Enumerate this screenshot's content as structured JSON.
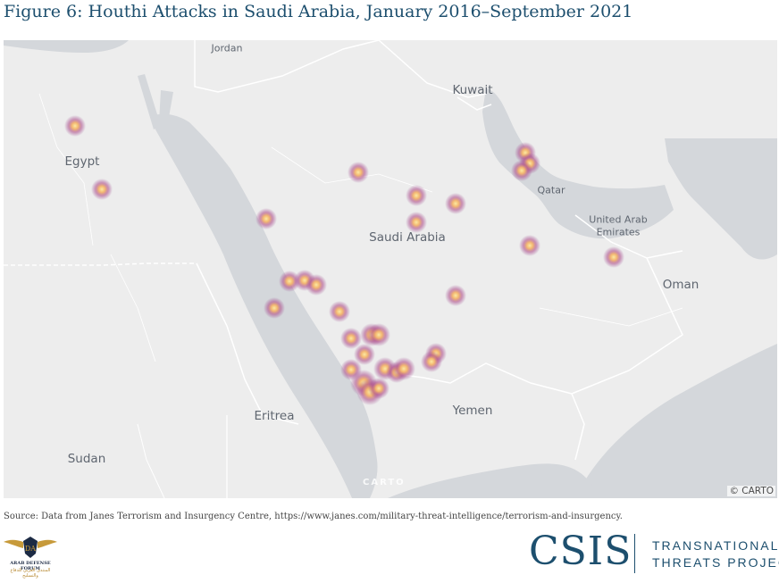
{
  "title": "Figure 6: Houthi Attacks in Saudi Arabia, January 2016–September 2021",
  "map": {
    "country_labels": {
      "jordan": "Jordan",
      "kuwait": "Kuwait",
      "egypt": "Egypt",
      "qatar": "Qatar",
      "uae": "United Arab\nEmirates",
      "saudi_arabia": "Saudi Arabia",
      "oman": "Oman",
      "eritrea": "Eritrea",
      "yemen": "Yemen",
      "sudan": "Sudan"
    },
    "attribution": "© CARTO",
    "watermark": "CARTO",
    "colors": {
      "land": "#ededed",
      "water": "#d4d7db",
      "border": "#ffffff",
      "marker_core": "#f6d78d",
      "marker_glow": "#a24a8c"
    }
  },
  "source": "Source: Data from Janes Terrorism and Insurgency Centre, https://www.janes.com/military-threat-intelligence/terrorism-and-insurgency.",
  "footer": {
    "left_logo_line1": "ARAB DEFENSE FORUM",
    "left_logo_line2": "المنتدى العربي للدفاع والتسليح",
    "left_logo_monogram": "DA",
    "csis": "CSIS",
    "tagline_line1": "TRANSNATIONAL",
    "tagline_line2": "THREATS PROJECT"
  }
}
